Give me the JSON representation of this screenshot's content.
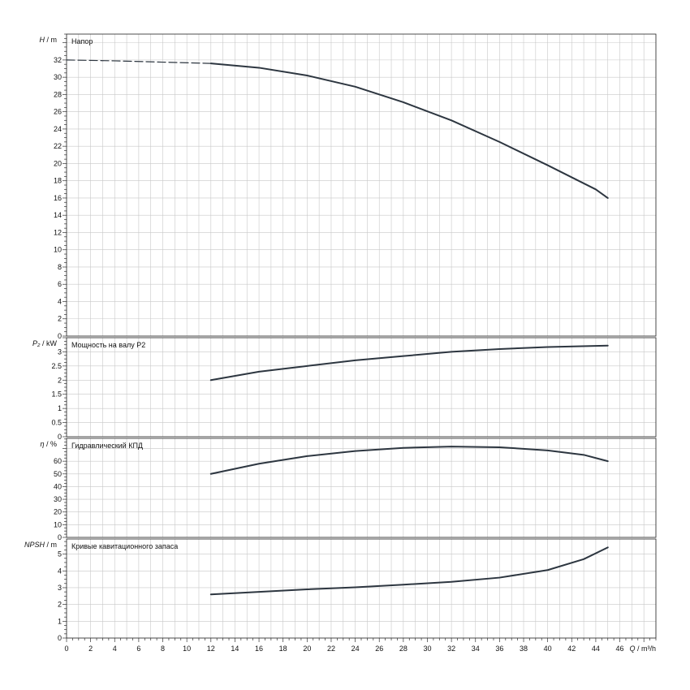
{
  "chart_data": [
    {
      "type": "line",
      "title": "Напор",
      "ylabel_symbol": "H",
      "ylabel_unit": "m",
      "xlabel_symbol": "Q",
      "xlabel_unit": "m³/h",
      "xlim": [
        0,
        49
      ],
      "ylim": [
        0,
        35
      ],
      "yticks": [
        0,
        2,
        4,
        6,
        8,
        10,
        12,
        14,
        16,
        18,
        20,
        22,
        24,
        26,
        28,
        30,
        32
      ],
      "grid": true,
      "series": [
        {
          "style": "dashed",
          "x": [
            0,
            4,
            8,
            12
          ],
          "y": [
            32,
            31.9,
            31.75,
            31.6
          ]
        },
        {
          "style": "solid",
          "x": [
            12,
            16,
            20,
            24,
            28,
            32,
            36,
            40,
            44,
            45
          ],
          "y": [
            31.6,
            31.1,
            30.2,
            28.9,
            27.1,
            25,
            22.5,
            19.8,
            17,
            16
          ]
        }
      ]
    },
    {
      "type": "line",
      "title": "Мощность на валу P2",
      "ylabel_symbol": "P₂",
      "ylabel_unit": "kW",
      "xlim": [
        0,
        49
      ],
      "ylim": [
        0,
        3.5
      ],
      "yticks": [
        0,
        0.5,
        1,
        1.5,
        2,
        2.5,
        3
      ],
      "yticklabels": [
        "0",
        "0.5",
        "1",
        "1.5",
        "2",
        "2.5",
        "3"
      ],
      "grid": true,
      "series": [
        {
          "style": "solid",
          "x": [
            12,
            16,
            20,
            24,
            28,
            32,
            36,
            40,
            45
          ],
          "y": [
            2,
            2.3,
            2.5,
            2.7,
            2.85,
            3,
            3.1,
            3.17,
            3.22
          ]
        }
      ]
    },
    {
      "type": "line",
      "title": "Гидравлический КПД",
      "ylabel_symbol": "η",
      "ylabel_unit": "%",
      "xlim": [
        0,
        49
      ],
      "ylim": [
        0,
        78
      ],
      "yticks": [
        0,
        10,
        20,
        30,
        40,
        50,
        60
      ],
      "grid": true,
      "series": [
        {
          "style": "solid",
          "x": [
            12,
            16,
            20,
            24,
            28,
            32,
            36,
            40,
            43,
            45
          ],
          "y": [
            50,
            58,
            64,
            68,
            70.5,
            71.5,
            71,
            68.5,
            65,
            60
          ]
        }
      ]
    },
    {
      "type": "line",
      "title": "Кривые кавитационного запаса",
      "ylabel_symbol": "NPSH",
      "ylabel_unit": "m",
      "xlim": [
        0,
        49
      ],
      "ylim": [
        0,
        5.9
      ],
      "yticks": [
        0,
        1,
        2,
        3,
        4,
        5
      ],
      "xticks": [
        0,
        2,
        4,
        6,
        8,
        10,
        12,
        14,
        16,
        18,
        20,
        22,
        24,
        26,
        28,
        30,
        32,
        34,
        36,
        38,
        40,
        42,
        44,
        46
      ],
      "grid": true,
      "series": [
        {
          "style": "solid",
          "x": [
            12,
            16,
            20,
            24,
            28,
            32,
            36,
            40,
            43,
            45
          ],
          "y": [
            2.6,
            2.75,
            2.9,
            3.02,
            3.18,
            3.35,
            3.6,
            4.05,
            4.7,
            5.4
          ]
        }
      ]
    }
  ]
}
